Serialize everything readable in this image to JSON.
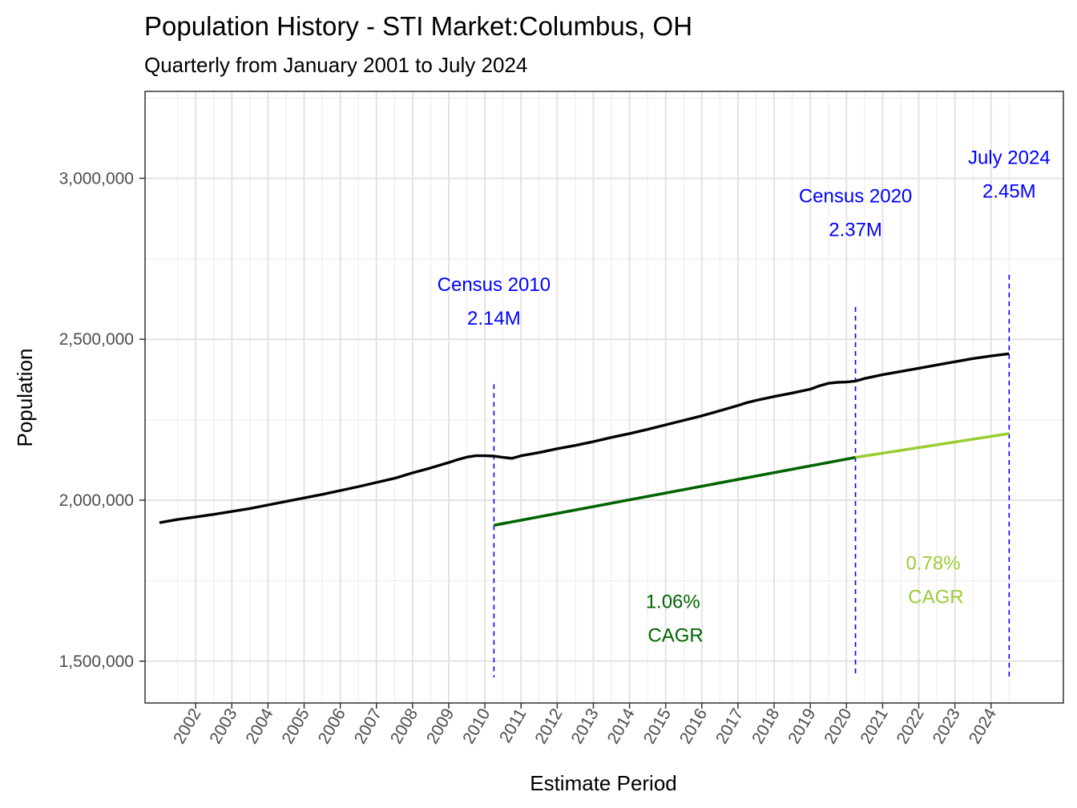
{
  "chart_data": {
    "type": "line",
    "title": "Population History - STI Market:Columbus, OH",
    "subtitle": "Quarterly from January 2001 to July 2024",
    "xlabel": "Estimate Period",
    "ylabel": "Population",
    "xlim": [
      2000.6,
      2026.0
    ],
    "ylim": [
      1370000,
      3270000
    ],
    "y_ticks": [
      1500000,
      2000000,
      2500000,
      3000000
    ],
    "y_tick_labels": [
      "1,500,000",
      "2,000,000",
      "2,500,000",
      "3,000,000"
    ],
    "x_ticks": [
      2002,
      2003,
      2004,
      2005,
      2006,
      2007,
      2008,
      2009,
      2010,
      2011,
      2012,
      2013,
      2014,
      2015,
      2016,
      2017,
      2018,
      2019,
      2020,
      2021,
      2022,
      2023,
      2024
    ],
    "x_tick_labels": [
      "2002",
      "2003",
      "2004",
      "2005",
      "2006",
      "2007",
      "2008",
      "2009",
      "2010",
      "2011",
      "2012",
      "2013",
      "2014",
      "2015",
      "2016",
      "2017",
      "2018",
      "2019",
      "2020",
      "2021",
      "2022",
      "2023",
      "2024"
    ],
    "grid": true,
    "series": [
      {
        "color": "#000000",
        "x": [
          2001.0,
          2001.5,
          2002.0,
          2002.5,
          2003.0,
          2003.5,
          2004.0,
          2004.5,
          2005.0,
          2005.5,
          2006.0,
          2006.5,
          2007.0,
          2007.5,
          2008.0,
          2008.5,
          2009.0,
          2009.25,
          2009.5,
          2009.75,
          2010.0,
          2010.25,
          2010.5,
          2010.75,
          2011.0,
          2011.5,
          2012.0,
          2012.5,
          2013.0,
          2013.5,
          2014.0,
          2014.5,
          2015.0,
          2015.5,
          2016.0,
          2016.5,
          2017.0,
          2017.25,
          2017.5,
          2018.0,
          2018.5,
          2019.0,
          2019.25,
          2019.5,
          2019.75,
          2020.0,
          2020.25,
          2020.5,
          2021.0,
          2021.5,
          2022.0,
          2022.5,
          2023.0,
          2023.5,
          2024.0,
          2024.5
        ],
        "y": [
          1930000,
          1940000,
          1948000,
          1956000,
          1965000,
          1974000,
          1985000,
          1996000,
          2007000,
          2018000,
          2030000,
          2042000,
          2055000,
          2068000,
          2085000,
          2100000,
          2117000,
          2126000,
          2134000,
          2138000,
          2138000,
          2137000,
          2133000,
          2130000,
          2138000,
          2148000,
          2160000,
          2170000,
          2182000,
          2195000,
          2207000,
          2220000,
          2234000,
          2248000,
          2262000,
          2278000,
          2294000,
          2303000,
          2310000,
          2322000,
          2333000,
          2345000,
          2355000,
          2363000,
          2366000,
          2367000,
          2370000,
          2378000,
          2390000,
          2400000,
          2410000,
          2420000,
          2430000,
          2440000,
          2448000,
          2455000
        ]
      },
      {
        "color": "#006400",
        "x": [
          2010.25,
          2020.25
        ],
        "y": [
          1922000,
          2133000
        ]
      },
      {
        "color": "#9acd32",
        "x": [
          2020.25,
          2024.5
        ],
        "y": [
          2133000,
          2207000
        ]
      }
    ],
    "vlines": [
      {
        "x": 2010.25,
        "y_top": 2360000,
        "color": "#0000ff"
      },
      {
        "x": 2020.25,
        "y_top": 2600000,
        "color": "#0000ff"
      },
      {
        "x": 2024.5,
        "y_top": 2700000,
        "color": "#0000ff"
      }
    ],
    "annotations": [
      {
        "lines": [
          "Census 2010",
          "2.14M"
        ],
        "x": 2010.25,
        "y": 2650000,
        "color": "#0000ff"
      },
      {
        "lines": [
          "Census 2020",
          "2.37M"
        ],
        "x": 2020.25,
        "y": 2925000,
        "color": "#0000ff"
      },
      {
        "lines": [
          "July 2024",
          "2.45M"
        ],
        "x": 2024.5,
        "y": 3045000,
        "color": "#0000ff"
      },
      {
        "lines": [
          "1.06%",
          " CAGR"
        ],
        "x": 2015.2,
        "y": 1665000,
        "color": "#006400"
      },
      {
        "lines": [
          "0.78%",
          " CAGR"
        ],
        "x": 2022.4,
        "y": 1785000,
        "color": "#9acd32"
      }
    ]
  }
}
